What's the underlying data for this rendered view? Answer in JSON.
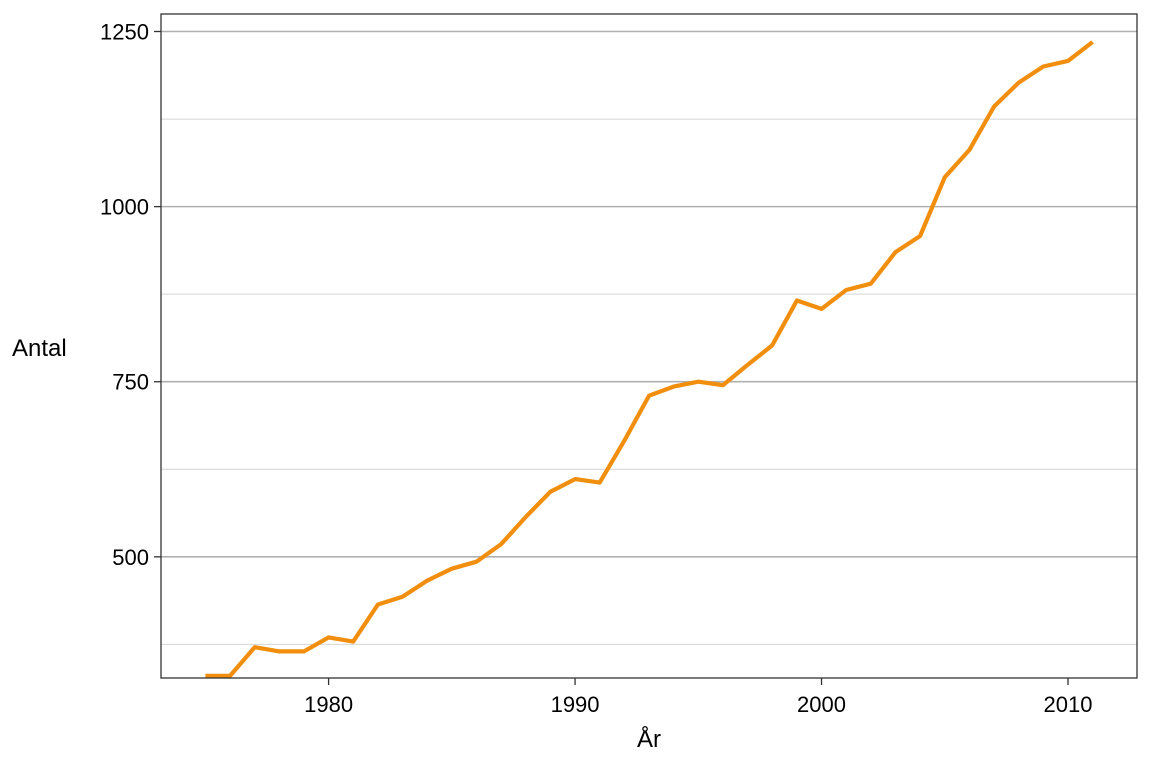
{
  "chart_data": {
    "type": "line",
    "title": "",
    "xlabel": "År",
    "ylabel": "Antal",
    "xlim": [
      1973.2,
      2012.8
    ],
    "ylim": [
      327,
      1275
    ],
    "x_ticks": [
      1980,
      1990,
      2000,
      2010
    ],
    "y_ticks": [
      500,
      750,
      1000,
      1250
    ],
    "y_minor_ticks": [
      375,
      625,
      875,
      1125
    ],
    "grid": true,
    "legend": "none",
    "series": [
      {
        "color": "#F28E0E",
        "x": [
          1975,
          1976,
          1977,
          1978,
          1979,
          1980,
          1981,
          1982,
          1983,
          1984,
          1985,
          1986,
          1987,
          1988,
          1989,
          1990,
          1991,
          1992,
          1993,
          1994,
          1995,
          1996,
          1997,
          1998,
          1999,
          2000,
          2001,
          2002,
          2003,
          2004,
          2005,
          2006,
          2007,
          2008,
          2009,
          2010,
          2011
        ],
        "y": [
          330,
          330,
          371,
          365,
          365,
          385,
          379,
          432,
          443,
          466,
          483,
          493,
          518,
          557,
          593,
          611,
          606,
          666,
          730,
          743,
          750,
          745,
          774,
          802,
          866,
          854,
          881,
          890,
          935,
          958,
          1042,
          1081,
          1143,
          1177,
          1200,
          1208,
          1235
        ]
      }
    ]
  }
}
